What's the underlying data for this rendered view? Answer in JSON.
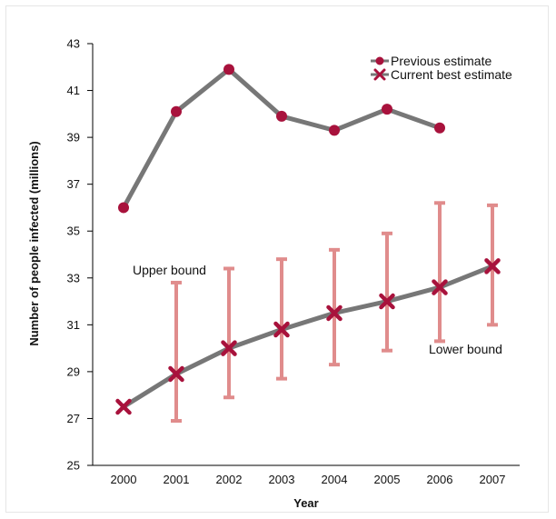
{
  "chart_data": {
    "type": "line",
    "title": "",
    "xlabel": "Year",
    "ylabel": "Number of people infected (millions)",
    "categories": [
      "2000",
      "2001",
      "2002",
      "2003",
      "2004",
      "2005",
      "2006",
      "2007"
    ],
    "ylim": [
      25,
      43
    ],
    "yticks": [
      "25",
      "27",
      "29",
      "31",
      "33",
      "35",
      "37",
      "39",
      "41",
      "43"
    ],
    "grid": false,
    "legend_position": "top-right",
    "series": [
      {
        "name": "Previous estimate",
        "marker": "circle",
        "values": [
          36.0,
          40.1,
          41.9,
          39.9,
          39.3,
          40.2,
          39.4,
          null
        ]
      },
      {
        "name": "Current best estimate",
        "marker": "x",
        "values": [
          27.5,
          28.9,
          30.0,
          30.8,
          31.5,
          32.0,
          32.6,
          33.5
        ],
        "error_low": [
          null,
          26.9,
          27.9,
          28.7,
          29.3,
          29.9,
          30.3,
          31.0
        ],
        "error_high": [
          null,
          32.8,
          33.4,
          33.8,
          34.2,
          34.9,
          36.2,
          36.1
        ]
      }
    ],
    "annotations": {
      "upper": "Upper bound",
      "lower": "Lower bound"
    },
    "colors": {
      "line": "#777777",
      "marker": "#a8123c",
      "error_bar": "#e08c8c",
      "axis": "#000000"
    }
  }
}
